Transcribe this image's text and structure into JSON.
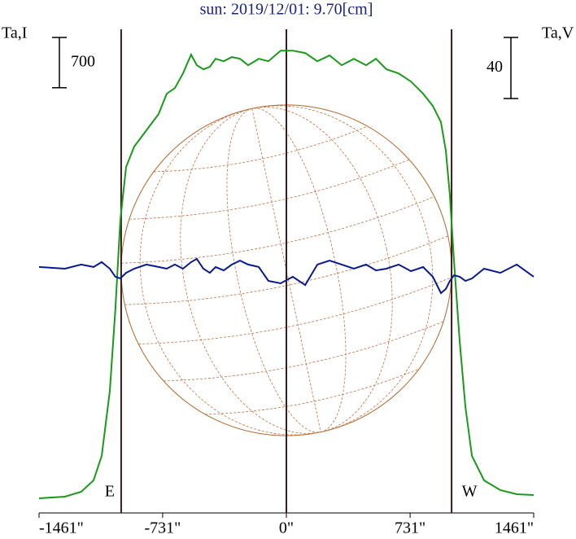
{
  "chart_data": {
    "type": "line",
    "title": "sun: 2019/12/01: 9.70[cm]",
    "x": [
      -1461,
      -1308,
      -1212,
      -1139,
      -1091,
      -1043,
      -1010,
      -981,
      -947,
      -899,
      -827,
      -755,
      -707,
      -659,
      -611,
      -563,
      -529,
      -490,
      -452,
      -418,
      -370,
      -322,
      -274,
      -226,
      -163,
      -106,
      -34,
      38,
      111,
      183,
      255,
      327,
      399,
      471,
      529,
      591,
      663,
      736,
      808,
      865,
      913,
      942,
      966,
      990,
      1024,
      1058,
      1096,
      1168,
      1264,
      1361,
      1461
    ],
    "series": [
      {
        "name": "Ta,I",
        "color": "#1a9a1a",
        "scale_bar": 700,
        "values": [
          204,
          227,
          295,
          453,
          793,
          1700,
          2833,
          4079,
          4815,
          5099,
          5326,
          5552,
          5835,
          5914,
          6118,
          6379,
          6232,
          6175,
          6209,
          6322,
          6288,
          6345,
          6322,
          6232,
          6322,
          6288,
          6435,
          6435,
          6402,
          6288,
          6368,
          6232,
          6322,
          6232,
          6322,
          6175,
          6118,
          6005,
          5835,
          5665,
          5439,
          5042,
          4419,
          3512,
          2379,
          1473,
          793,
          453,
          317,
          261,
          249
        ]
      },
      {
        "name": "Ta,V",
        "color": "#0a1a8a",
        "axis": "y2",
        "scale_bar": 40,
        "values": [
          1.1,
          0,
          2.7,
          1.1,
          4.3,
          0,
          -5.3,
          -6.4,
          -2.7,
          0,
          2.7,
          1.1,
          0,
          2.7,
          0,
          4.3,
          6.4,
          0,
          -2.7,
          1.1,
          -1.1,
          2.7,
          5.3,
          2.7,
          1.1,
          -8,
          -9.6,
          -5.3,
          -10.7,
          2.7,
          5.3,
          2.7,
          0,
          2.7,
          -1.1,
          0,
          2.7,
          -1.6,
          1.1,
          -5.3,
          -16,
          -13.3,
          -8,
          -4.3,
          -5.3,
          -8,
          -6.4,
          0,
          -2.7,
          2.7,
          -5.3
        ]
      }
    ],
    "xlim": [
      -1461,
      1461
    ],
    "xticks": [
      {
        "value": -1461,
        "label": "-1461\""
      },
      {
        "value": -731,
        "label": "-731\""
      },
      {
        "value": 0,
        "label": "0\""
      },
      {
        "value": 731,
        "label": "731\""
      },
      {
        "value": 1461,
        "label": "1461\""
      }
    ],
    "ylim": [
      0,
      6800
    ],
    "y2lim": [
      -160,
      160
    ],
    "vlines": [
      {
        "x": -976,
        "label": "E"
      },
      {
        "x": 0
      },
      {
        "x": 976,
        "label": "W"
      }
    ]
  }
}
